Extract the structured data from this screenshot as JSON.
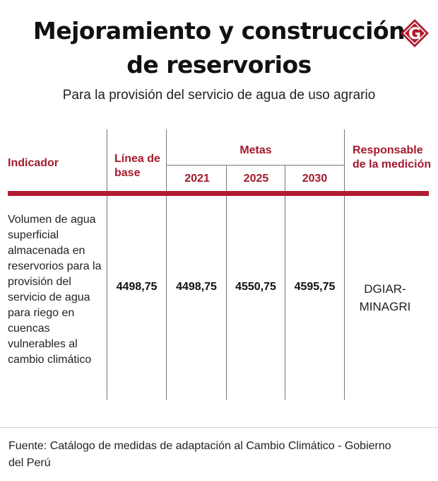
{
  "title": {
    "line1": "Mejoramiento y construcción",
    "line2": "de reservorios"
  },
  "logo": {
    "letter": "G",
    "color": "#b01c30"
  },
  "subtitle": "Para la provisión del servicio de agua de uso agrario",
  "headers": {
    "indicador": "Indicador",
    "linea_base": "Línea de base",
    "metas": "Metas",
    "years": [
      "2021",
      "2025",
      "2030"
    ],
    "responsable": "Responsable de la medición"
  },
  "row": {
    "indicador": "Volumen de agua superficial almacenada en reservorios para la provisión del servicio de agua para riego en cuencas vulnerables al cambio climático",
    "linea_base": "4498,75",
    "metas": [
      "4498,75",
      "4550,75",
      "4595,75"
    ],
    "responsable": "DGIAR-MINAGRI"
  },
  "source": "Fuente: Catálogo de medidas de adaptación al Cambio Climático - Gobierno del Perú",
  "colors": {
    "accent": "#b01c30"
  }
}
